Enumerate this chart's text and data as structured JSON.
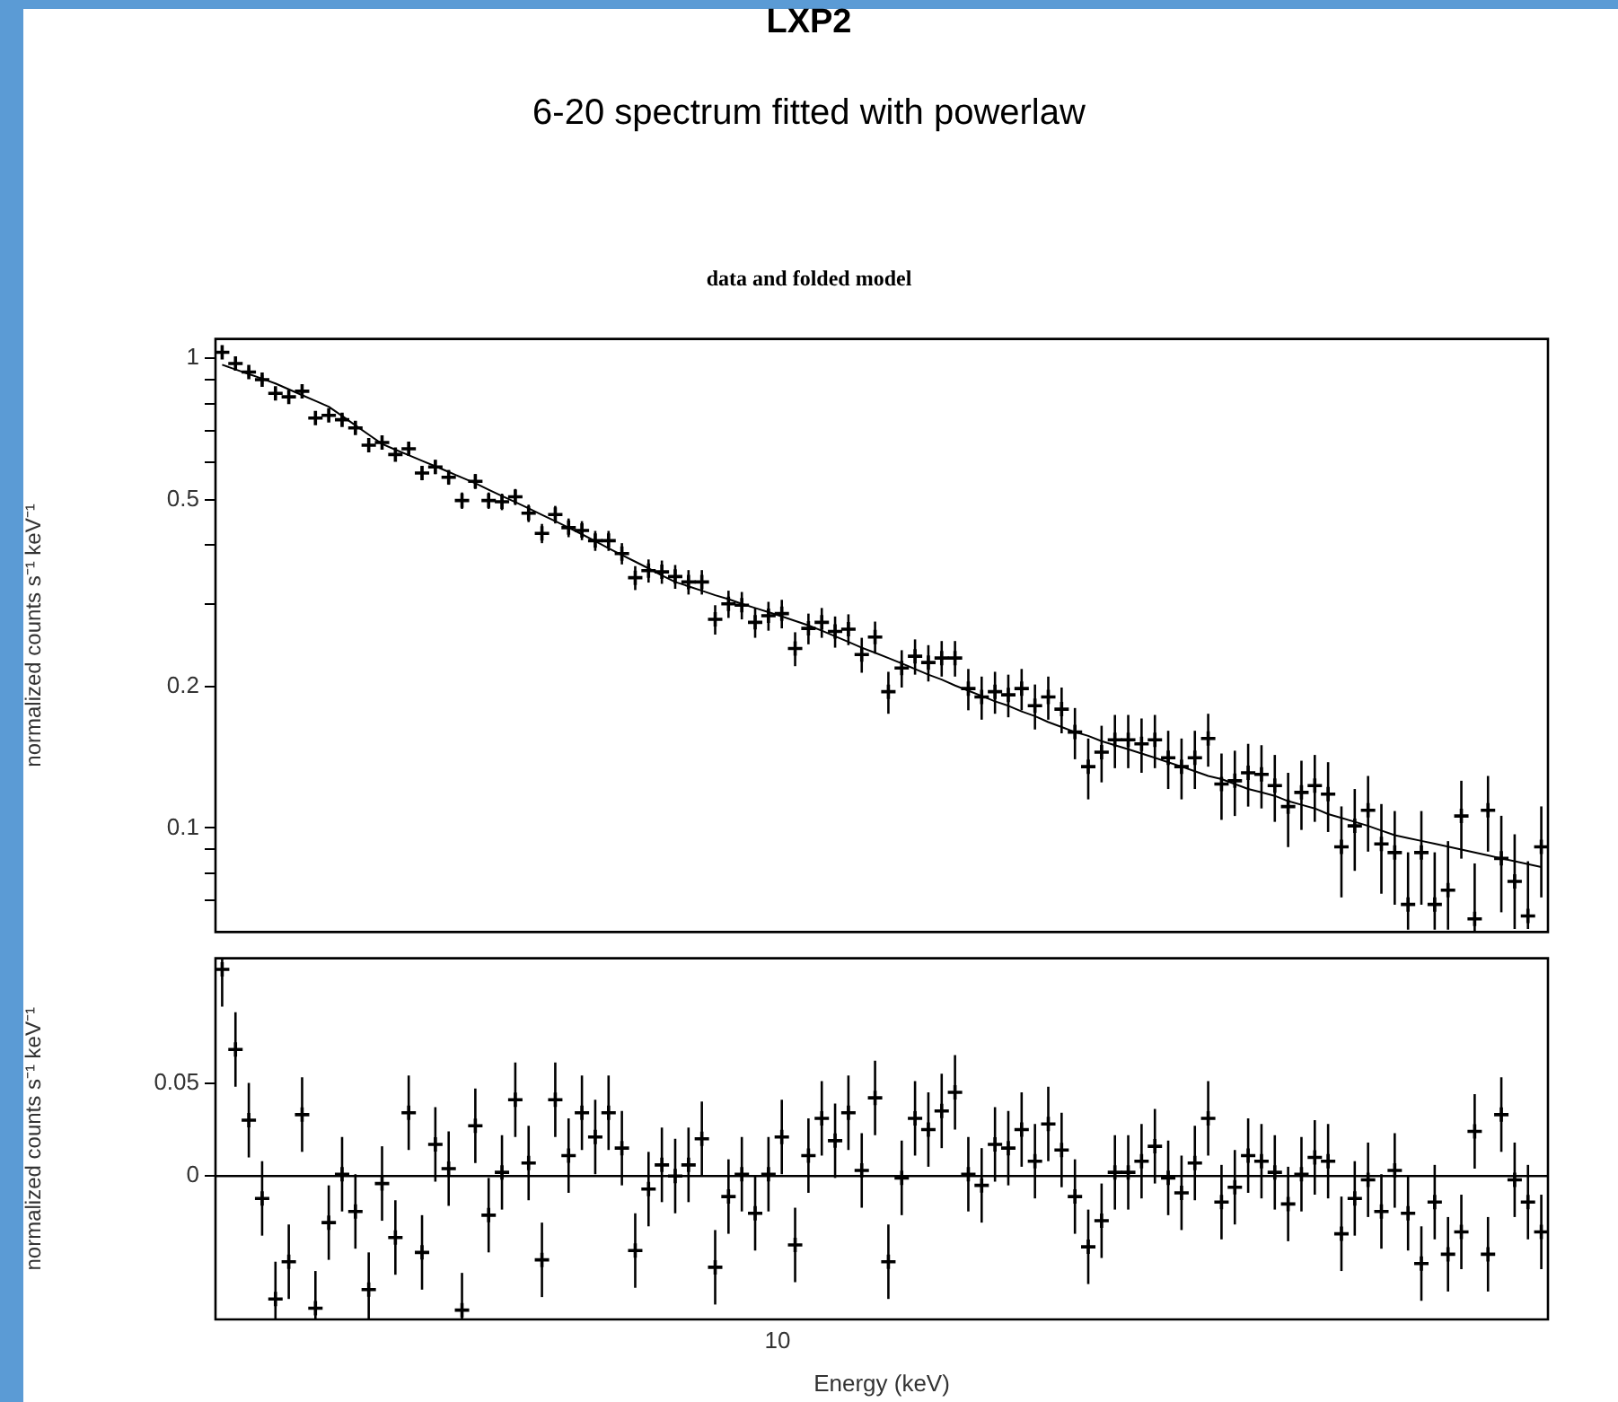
{
  "chart_data": [
    {
      "type": "scatter",
      "title": "LXP2",
      "subtitle": "6-20 spectrum fitted with powerlaw",
      "annotations": [
        "data and folded model"
      ],
      "ylabel": "normalized counts s⁻¹ keV⁻¹",
      "log": true,
      "grid": false,
      "legend": false,
      "tick_labels": "y",
      "ylim": [
        0.06,
        1.1
      ],
      "yticks": [
        {
          "value": 0.07,
          "label": null
        },
        {
          "value": 0.08,
          "label": null
        },
        {
          "value": 0.09,
          "label": null
        },
        0.1,
        0.2,
        {
          "value": 0.3,
          "label": null
        },
        {
          "value": 0.4,
          "label": null
        },
        0.5,
        {
          "value": 0.6,
          "label": null
        },
        {
          "value": 0.7,
          "label": null
        },
        {
          "value": 0.8,
          "label": null
        },
        {
          "value": 0.9,
          "label": null
        },
        1
      ],
      "categories": [
        null,
        null,
        null,
        null,
        null,
        null,
        null,
        null,
        null,
        null,
        null,
        null,
        null,
        null,
        null,
        null,
        null,
        null,
        null,
        null,
        null,
        null,
        null,
        null,
        null,
        null,
        null,
        null,
        null,
        null,
        null,
        null,
        null,
        null,
        null,
        null,
        null,
        null,
        null,
        null,
        null,
        null,
        null,
        null,
        null,
        null,
        null,
        null,
        null,
        null,
        null,
        null,
        null,
        null,
        null,
        null,
        null,
        null,
        null,
        null,
        null,
        null,
        null,
        null,
        null,
        null,
        null,
        null,
        null,
        null,
        null,
        null,
        null,
        null,
        null,
        null,
        null,
        null,
        null,
        null,
        null,
        null,
        null,
        null,
        null,
        null,
        null,
        null,
        null,
        null,
        null,
        null,
        null,
        null,
        null,
        null,
        null,
        null,
        null,
        null
      ],
      "series": [
        {
          "color": "#000000",
          "marker": "cross",
          "values": [
            1.03,
            0.975,
            0.935,
            0.901,
            0.842,
            0.828,
            0.851,
            0.746,
            0.756,
            0.74,
            0.711,
            0.653,
            0.662,
            0.624,
            0.642,
            0.57,
            0.587,
            0.558,
            0.498,
            0.547,
            0.498,
            0.495,
            0.507,
            0.468,
            0.424,
            0.465,
            0.436,
            0.43,
            0.409,
            0.409,
            0.384,
            0.341,
            0.353,
            0.351,
            0.343,
            0.334,
            0.334,
            0.278,
            0.3,
            0.298,
            0.274,
            0.283,
            0.286,
            0.241,
            0.266,
            0.274,
            0.262,
            0.265,
            0.234,
            0.255,
            0.195,
            0.219,
            0.232,
            0.225,
            0.23,
            0.23,
            0.198,
            0.19,
            0.195,
            0.192,
            0.198,
            0.182,
            0.19,
            0.179,
            0.16,
            0.135,
            0.145,
            0.154,
            0.154,
            0.151,
            0.154,
            0.141,
            0.135,
            0.141,
            0.155,
            0.124,
            0.126,
            0.131,
            0.13,
            0.123,
            0.111,
            0.119,
            0.123,
            0.118,
            0.0911,
            0.101,
            0.109,
            0.0924,
            0.0886,
            0.0687,
            0.0886,
            0.0687,
            0.0737,
            0.106,
            0.064,
            0.109,
            0.0861,
            0.0769,
            0.0649,
            0.0911
          ],
          "errors": [
            0.02,
            0.02,
            0.02,
            0.02,
            0.02,
            0.02,
            0.02,
            0.02,
            0.02,
            0.02,
            0.02,
            0.02,
            0.02,
            0.02,
            0.02,
            0.02,
            0.02,
            0.02,
            0.02,
            0.02,
            0.02,
            0.02,
            0.02,
            0.02,
            0.02,
            0.02,
            0.02,
            0.02,
            0.02,
            0.02,
            0.02,
            0.02,
            0.02,
            0.02,
            0.02,
            0.02,
            0.02,
            0.02,
            0.02,
            0.02,
            0.02,
            0.02,
            0.02,
            0.02,
            0.02,
            0.02,
            0.02,
            0.02,
            0.02,
            0.02,
            0.02,
            0.02,
            0.02,
            0.02,
            0.02,
            0.02,
            0.02,
            0.02,
            0.02,
            0.02,
            0.02,
            0.02,
            0.02,
            0.02,
            0.02,
            0.02,
            0.02,
            0.02,
            0.02,
            0.02,
            0.02,
            0.02,
            0.02,
            0.02,
            0.02,
            0.02,
            0.02,
            0.02,
            0.02,
            0.02,
            0.02,
            0.02,
            0.02,
            0.02,
            0.02,
            0.02,
            0.02,
            0.02,
            0.02,
            [
              0.0607,
              0.0887
            ],
            0.02,
            [
              0.0607,
              0.0887
            ],
            [
              0.0607,
              0.0937
            ],
            0.02,
            [
              0.06,
              0.084
            ],
            0.02,
            0.02,
            [
              0.0609,
              0.0969
            ],
            [
              0.0609,
              0.0849
            ],
            0.02
          ]
        },
        {
          "type": "line",
          "color": "#000000",
          "values": [
            0.969,
            0.947,
            0.926,
            0.905,
            0.884,
            0.859,
            0.835,
            0.812,
            0.789,
            0.754,
            0.72,
            0.688,
            0.657,
            0.639,
            0.622,
            0.605,
            0.589,
            0.573,
            0.557,
            0.542,
            0.525,
            0.509,
            0.494,
            0.479,
            0.464,
            0.45,
            0.436,
            0.422,
            0.408,
            0.394,
            0.381,
            0.369,
            0.357,
            0.345,
            0.334,
            0.327,
            0.32,
            0.313,
            0.307,
            0.3,
            0.294,
            0.288,
            0.282,
            0.276,
            0.27,
            0.263,
            0.256,
            0.249,
            0.242,
            0.236,
            0.23,
            0.224,
            0.218,
            0.212,
            0.207,
            0.201,
            0.196,
            0.191,
            0.186,
            0.182,
            0.177,
            0.173,
            0.168,
            0.164,
            0.16,
            0.157,
            0.153,
            0.15,
            0.147,
            0.144,
            0.141,
            0.138,
            0.135,
            0.132,
            0.129,
            0.127,
            0.124,
            0.121,
            0.119,
            0.117,
            0.114,
            0.112,
            0.11,
            0.107,
            0.105,
            0.103,
            0.101,
            0.0987,
            0.0965,
            0.0951,
            0.0938,
            0.0925,
            0.0912,
            0.0899,
            0.0886,
            0.0874,
            0.0861,
            0.0849,
            0.0837,
            0.0825
          ]
        }
      ]
    },
    {
      "type": "scatter",
      "xlabel": "Energy (keV)",
      "ylabel": "normalized counts s⁻¹ keV⁻¹",
      "annotations": [
        "10"
      ],
      "grid": false,
      "legend": false,
      "marker": "cross",
      "tick_labels": "y",
      "ylim": [
        -0.077,
        0.117
      ],
      "yticks": [
        0,
        0.05
      ],
      "ref_lines": [
        {
          "axis": "y",
          "value": 0,
          "color": "#000000"
        }
      ],
      "categories": [
        null,
        null,
        null,
        null,
        null,
        null,
        null,
        null,
        null,
        null,
        null,
        null,
        null,
        null,
        null,
        null,
        null,
        null,
        null,
        null,
        null,
        null,
        null,
        null,
        null,
        null,
        null,
        null,
        null,
        null,
        null,
        null,
        null,
        null,
        null,
        null,
        null,
        null,
        null,
        null,
        null,
        null,
        null,
        null,
        null,
        null,
        null,
        null,
        null,
        null,
        null,
        null,
        null,
        null,
        null,
        null,
        null,
        null,
        null,
        null,
        null,
        null,
        null,
        null,
        null,
        null,
        null,
        null,
        null,
        null,
        null,
        null,
        null,
        null,
        null,
        null,
        null,
        null,
        null,
        null,
        null,
        null,
        null,
        null,
        null,
        null,
        null,
        null,
        null,
        null,
        null,
        null,
        null,
        null,
        null,
        null,
        null,
        null,
        null,
        null
      ],
      "series": [
        {
          "color": "#000000",
          "values": [
            0.111,
            0.068,
            0.03,
            -0.012,
            -0.066,
            -0.046,
            0.033,
            -0.071,
            -0.025,
            0.001,
            -0.019,
            -0.061,
            -0.004,
            -0.033,
            0.034,
            -0.041,
            0.017,
            0.004,
            -0.072,
            0.027,
            -0.021,
            0.002,
            0.041,
            0.007,
            -0.045,
            0.041,
            0.011,
            0.034,
            0.021,
            0.034,
            0.015,
            -0.04,
            -0.007,
            0.006,
            0.0,
            0.006,
            0.02,
            -0.049,
            -0.011,
            0.001,
            -0.02,
            0.001,
            0.021,
            -0.037,
            0.011,
            0.031,
            0.019,
            0.034,
            0.003,
            0.042,
            -0.046,
            -0.001,
            0.031,
            0.025,
            0.035,
            0.045,
            0.001,
            -0.005,
            0.017,
            0.015,
            0.025,
            0.008,
            0.028,
            0.014,
            -0.011,
            -0.038,
            -0.024,
            0.002,
            0.002,
            0.008,
            0.016,
            -0.001,
            -0.009,
            0.007,
            0.031,
            -0.014,
            -0.006,
            0.011,
            0.008,
            0.002,
            -0.015,
            0.001,
            0.01,
            0.008,
            -0.031,
            -0.012,
            -0.002,
            -0.019,
            0.003,
            -0.02,
            -0.047,
            -0.014,
            -0.042,
            -0.03,
            0.024,
            -0.042,
            0.033,
            -0.002,
            -0.014,
            -0.03
          ],
          "errors": [
            [
              0.091,
              0.117
            ],
            0.02,
            0.02,
            0.02,
            [
              -0.077,
              -0.046
            ],
            0.02,
            0.02,
            [
              -0.077,
              -0.051
            ],
            0.02,
            0.02,
            0.02,
            [
              -0.077,
              -0.041
            ],
            0.02,
            0.02,
            0.02,
            0.02,
            0.02,
            0.02,
            [
              -0.077,
              -0.052
            ],
            0.02,
            0.02,
            0.02,
            0.02,
            0.02,
            0.02,
            0.02,
            0.02,
            0.02,
            0.02,
            0.02,
            0.02,
            0.02,
            0.02,
            0.02,
            0.02,
            0.02,
            0.02,
            0.02,
            0.02,
            0.02,
            0.02,
            0.02,
            0.02,
            0.02,
            0.02,
            0.02,
            0.02,
            0.02,
            0.02,
            0.02,
            0.02,
            0.02,
            0.02,
            0.02,
            0.02,
            0.02,
            0.02,
            0.02,
            0.02,
            0.02,
            0.02,
            0.02,
            0.02,
            0.02,
            0.02,
            0.02,
            0.02,
            0.02,
            0.02,
            0.02,
            0.02,
            0.02,
            0.02,
            0.02,
            0.02,
            0.02,
            0.02,
            0.02,
            0.02,
            0.02,
            0.02,
            0.02,
            0.02,
            0.02,
            0.02,
            0.02,
            0.02,
            0.02,
            0.02,
            0.02,
            0.02,
            0.02,
            0.02,
            0.02,
            0.02,
            0.02,
            0.02,
            0.02,
            0.02,
            0.02
          ]
        }
      ]
    }
  ]
}
